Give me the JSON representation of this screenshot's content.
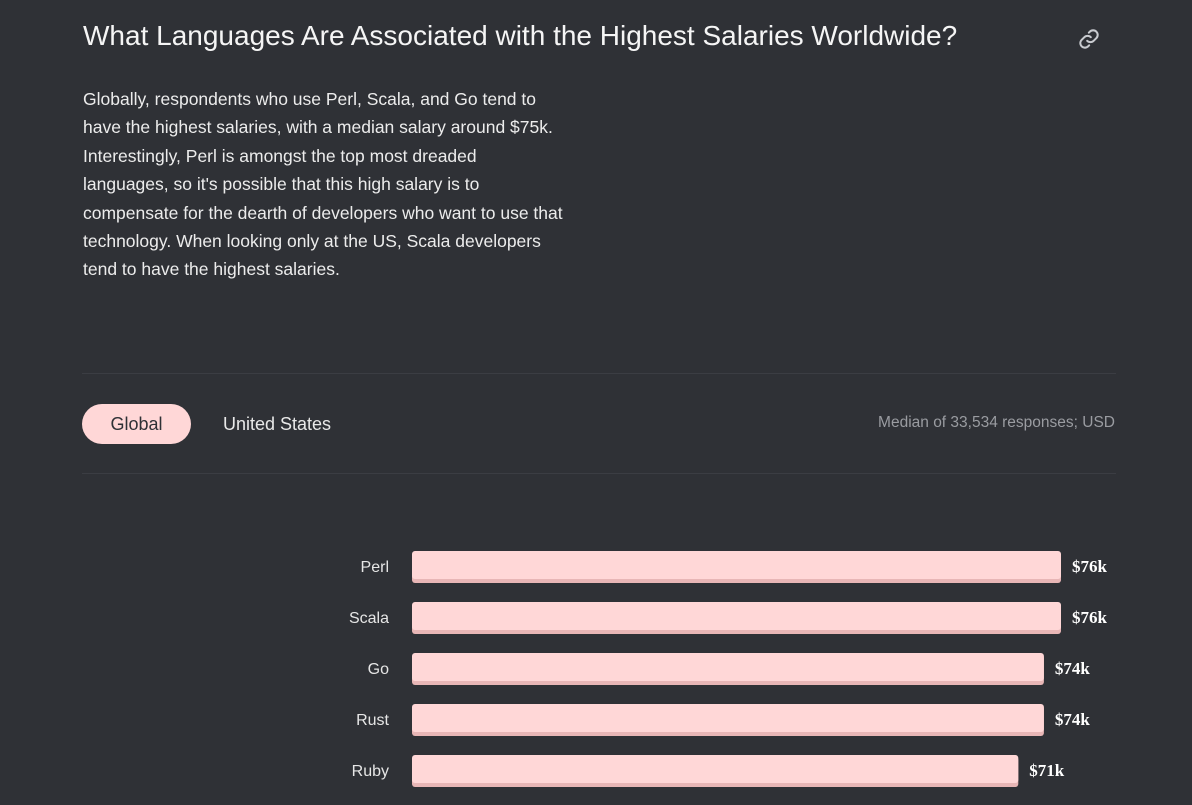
{
  "header": {
    "title": "What Languages Are Associated with the Highest Salaries Worldwide?",
    "link_icon": "link-icon"
  },
  "description": "Globally, respondents who use Perl, Scala, and Go tend to have the highest salaries, with a median salary around $75k. Interestingly, Perl is amongst the top most dreaded languages, so it's possible that this high salary is to compensate for the dearth of developers who want to use that technology. When looking only at the US, Scala developers tend to have the highest salaries.",
  "tabs": [
    {
      "label": "Global",
      "active": true
    },
    {
      "label": "United States",
      "active": false
    }
  ],
  "note": "Median of 33,534 responses; USD",
  "colors": {
    "background": "#2f3136",
    "bar": "#ffd7d7",
    "bar_shadow": "#e8b6b6",
    "active_tab": "#ffd7d7"
  },
  "chart_data": {
    "type": "bar",
    "orientation": "horizontal",
    "categories": [
      "Perl",
      "Scala",
      "Go",
      "Rust",
      "Ruby"
    ],
    "values": [
      76,
      76,
      74,
      74,
      71
    ],
    "value_labels": [
      "$76k",
      "$76k",
      "$74k",
      "$74k",
      "$71k"
    ],
    "unit": "USD",
    "xlim": [
      0,
      76
    ],
    "grid": false,
    "legend": "none"
  }
}
